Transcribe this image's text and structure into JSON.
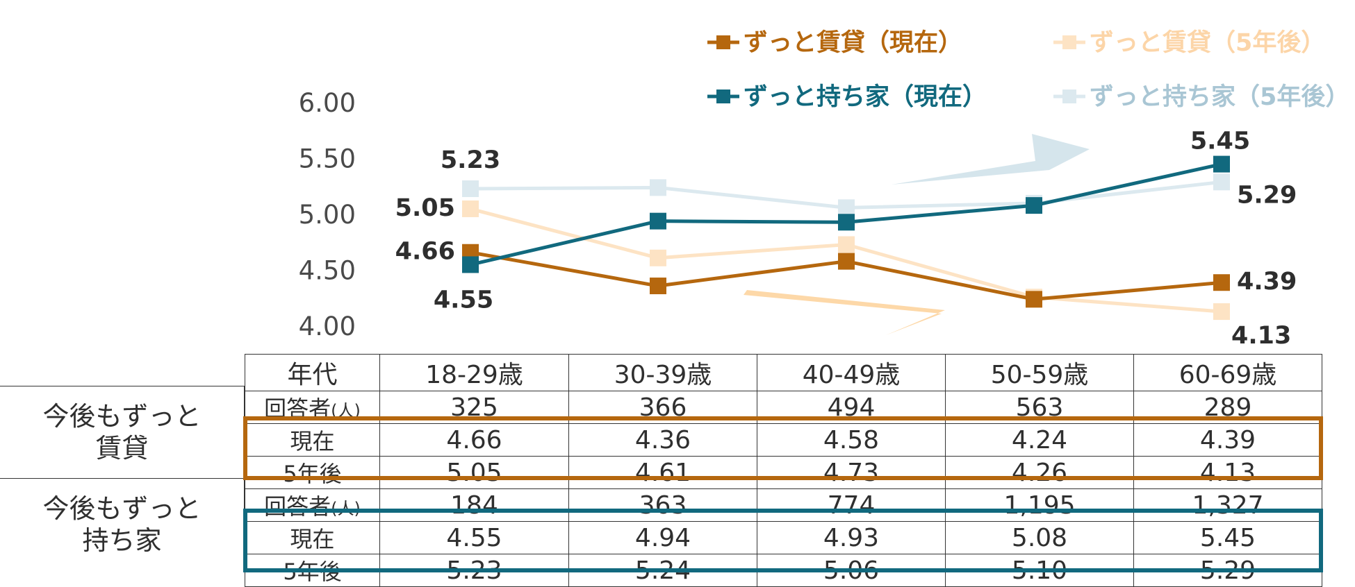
{
  "colors": {
    "rent_now": "#b5670e",
    "rent_5y": "#fde3c4",
    "own_now": "#11697e",
    "own_5y": "#dce9ef",
    "arrow_down": "#fdd8a8",
    "arrow_up": "#d5e5ec"
  },
  "chart_data": {
    "type": "line",
    "categories": [
      "18-29歳",
      "30-39歳",
      "40-49歳",
      "50-59歳",
      "60-69歳"
    ],
    "yticks": [
      "6.00",
      "5.50",
      "5.00",
      "4.50",
      "4.00"
    ],
    "ylim": [
      4.0,
      6.0
    ],
    "series": [
      {
        "key": "rent_5y",
        "name": "ずっと賃貸（5年後）",
        "values": [
          5.05,
          4.61,
          4.73,
          4.26,
          4.13
        ]
      },
      {
        "key": "own_5y",
        "name": "ずっと持ち家（5年後）",
        "values": [
          5.23,
          5.24,
          5.06,
          5.1,
          5.29
        ]
      },
      {
        "key": "rent_now",
        "name": "ずっと賃貸（現在）",
        "values": [
          4.66,
          4.36,
          4.58,
          4.24,
          4.39
        ]
      },
      {
        "key": "own_now",
        "name": "ずっと持ち家（現在）",
        "values": [
          4.55,
          4.94,
          4.93,
          5.08,
          5.45
        ]
      }
    ],
    "data_labels": [
      {
        "text": "5.23",
        "series": "own_5y",
        "index": 0,
        "anchor": "middle",
        "dx": 0,
        "dy": -42
      },
      {
        "text": "5.05",
        "series": "rent_5y",
        "index": 0,
        "anchor": "end",
        "dx": -22,
        "dy": -2
      },
      {
        "text": "4.66",
        "series": "rent_now",
        "index": 0,
        "anchor": "end",
        "dx": -22,
        "dy": -2
      },
      {
        "text": "4.55",
        "series": "own_now",
        "index": 0,
        "anchor": "middle",
        "dx": -10,
        "dy": 50
      },
      {
        "text": "5.45",
        "series": "own_now",
        "index": 4,
        "anchor": "middle",
        "dx": -2,
        "dy": -34
      },
      {
        "text": "5.29",
        "series": "own_5y",
        "index": 4,
        "anchor": "start",
        "dx": 22,
        "dy": 18
      },
      {
        "text": "4.39",
        "series": "rent_now",
        "index": 4,
        "anchor": "start",
        "dx": 22,
        "dy": -2
      },
      {
        "text": "4.13",
        "series": "rent_5y",
        "index": 4,
        "anchor": "start",
        "dx": 14,
        "dy": 34
      }
    ]
  },
  "legend": {
    "rent_now": "ずっと賃貸（現在）",
    "rent_5y": "ずっと賃貸（5年後）",
    "own_now": "ずっと持ち家（現在）",
    "own_5y": "ずっと持ち家（5年後）"
  },
  "table": {
    "header_label": "年代",
    "columns": [
      "18-29歳",
      "30-39歳",
      "40-49歳",
      "50-59歳",
      "60-69歳"
    ],
    "respondents_label": "回答者",
    "respondents_unit": "(人)",
    "now_label": "現在",
    "future_label": "5年後",
    "rent": {
      "group_label_line1": "今後もずっと",
      "group_label_line2": "賃貸",
      "respondents": [
        "325",
        "366",
        "494",
        "563",
        "289"
      ],
      "now": [
        "4.66",
        "4.36",
        "4.58",
        "4.24",
        "4.39"
      ],
      "future": [
        "5.05",
        "4.61",
        "4.73",
        "4.26",
        "4.13"
      ]
    },
    "own": {
      "group_label_line1": "今後もずっと",
      "group_label_line2": "持ち家",
      "respondents": [
        "184",
        "363",
        "774",
        "1,195",
        "1,327"
      ],
      "now": [
        "4.55",
        "4.94",
        "4.93",
        "5.08",
        "5.45"
      ],
      "future": [
        "5.23",
        "5.24",
        "5.06",
        "5.10",
        "5.29"
      ]
    }
  }
}
